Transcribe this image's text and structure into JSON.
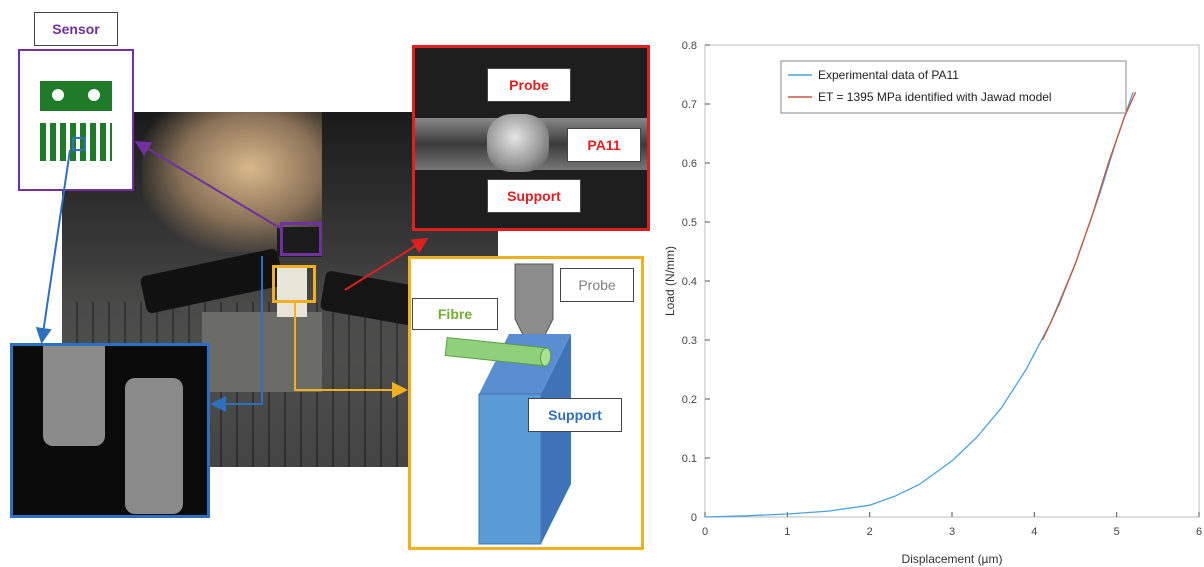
{
  "labels": {
    "sensor": "Sensor",
    "probe_top": "Probe",
    "pa11": "PA11",
    "support_top": "Support",
    "probe_schematic": "Probe",
    "fibre": "Fibre",
    "support_schematic": "Support"
  },
  "colors": {
    "sensor_border": "#7030a0",
    "probe_border": "#e02020",
    "sem_border": "#2f6fc0",
    "schematic_border": "#f0b020",
    "sensor_text": "#7030a0",
    "probe_text": "#e02020",
    "fibre_text": "#70b030",
    "support_text": "#2f6fc0"
  },
  "chart_data": {
    "type": "line",
    "xlabel": "Displacement (µm)",
    "ylabel": "Load (N/mm)",
    "xlim": [
      0,
      6
    ],
    "ylim": [
      0,
      0.8
    ],
    "xticks": [
      "0",
      "1",
      "2",
      "3",
      "4",
      "5",
      "6"
    ],
    "yticks": [
      "0",
      "0.1",
      "0.2",
      "0.3",
      "0.4",
      "0.5",
      "0.6",
      "0.7",
      "0.8"
    ],
    "legend_position": "top-right",
    "grid": false,
    "series": [
      {
        "name": "Experimental data of PA11",
        "color": "#4aa3df",
        "x": [
          0,
          0.5,
          1.0,
          1.5,
          2.0,
          2.3,
          2.6,
          3.0,
          3.3,
          3.6,
          3.9,
          4.2,
          4.5,
          4.8,
          5.0,
          5.2
        ],
        "y": [
          0,
          0.002,
          0.005,
          0.01,
          0.02,
          0.035,
          0.055,
          0.095,
          0.135,
          0.185,
          0.25,
          0.33,
          0.43,
          0.55,
          0.64,
          0.72
        ]
      },
      {
        "name": "ET = 1395 MPa identified with Jawad model",
        "color": "#c8553d",
        "x": [
          4.1,
          4.3,
          4.5,
          4.7,
          4.9,
          5.1,
          5.23
        ],
        "y": [
          0.3,
          0.36,
          0.43,
          0.51,
          0.6,
          0.68,
          0.72
        ]
      }
    ]
  }
}
